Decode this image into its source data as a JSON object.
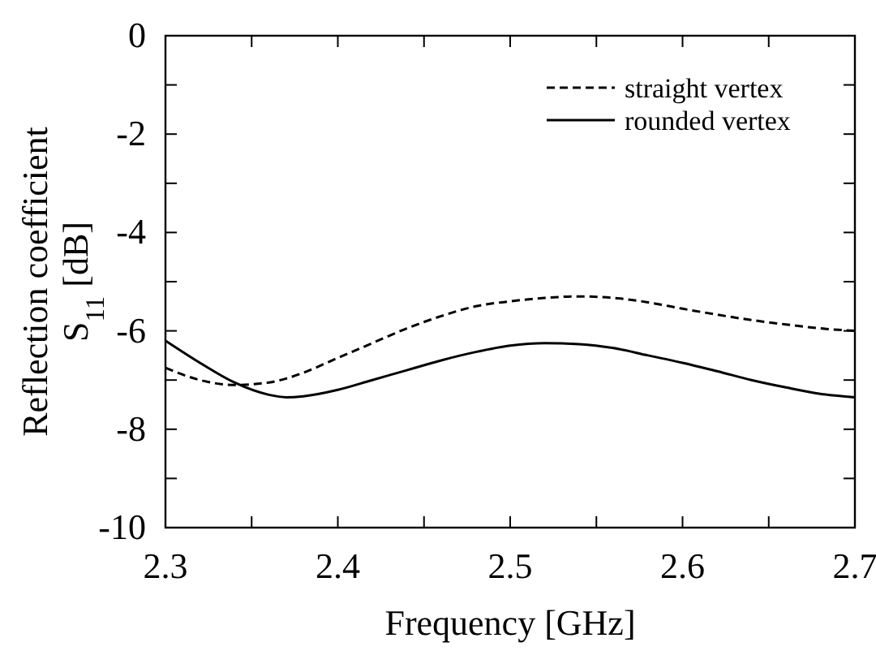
{
  "chart_data": {
    "type": "line",
    "xlabel": "Frequency [GHz]",
    "ylabel": "Reflection coefficient\nS$_{11}$ [dB]",
    "xlim": [
      2.3,
      2.7
    ],
    "ylim": [
      -10,
      0
    ],
    "xticks": [
      2.3,
      {
        "value": 2.35,
        "label": null
      },
      2.4,
      {
        "value": 2.45,
        "label": null
      },
      2.5,
      {
        "value": 2.55,
        "label": null
      },
      2.6,
      {
        "value": 2.65,
        "label": null
      },
      2.7
    ],
    "yticks": [
      -10,
      {
        "value": -9,
        "label": null
      },
      -8,
      {
        "value": -7,
        "label": null
      },
      -6,
      {
        "value": -5,
        "label": null
      },
      -4,
      {
        "value": -3,
        "label": null
      },
      -2,
      {
        "value": -1,
        "label": null
      },
      0
    ],
    "grid": false,
    "legend": "top right",
    "marker": "none",
    "x": [
      2.3,
      2.32,
      2.34,
      2.36,
      2.37,
      2.38,
      2.4,
      2.42,
      2.44,
      2.46,
      2.48,
      2.5,
      2.52,
      2.54,
      2.56,
      2.58,
      2.6,
      2.62,
      2.64,
      2.66,
      2.68,
      2.7
    ],
    "series": [
      {
        "name": "straight vertex",
        "color": "#000000",
        "line_style": "dashed",
        "values": [
          -6.75,
          -7.0,
          -7.1,
          -7.05,
          -6.97,
          -6.85,
          -6.55,
          -6.25,
          -5.95,
          -5.7,
          -5.5,
          -5.4,
          -5.33,
          -5.3,
          -5.33,
          -5.42,
          -5.55,
          -5.67,
          -5.78,
          -5.87,
          -5.95,
          -6.0
        ]
      },
      {
        "name": "rounded vertex",
        "color": "#000000",
        "line_style": "solid",
        "values": [
          -6.2,
          -6.65,
          -7.05,
          -7.3,
          -7.35,
          -7.33,
          -7.2,
          -7.0,
          -6.8,
          -6.6,
          -6.43,
          -6.3,
          -6.25,
          -6.27,
          -6.35,
          -6.5,
          -6.65,
          -6.82,
          -7.0,
          -7.15,
          -7.28,
          -7.35
        ]
      }
    ]
  }
}
